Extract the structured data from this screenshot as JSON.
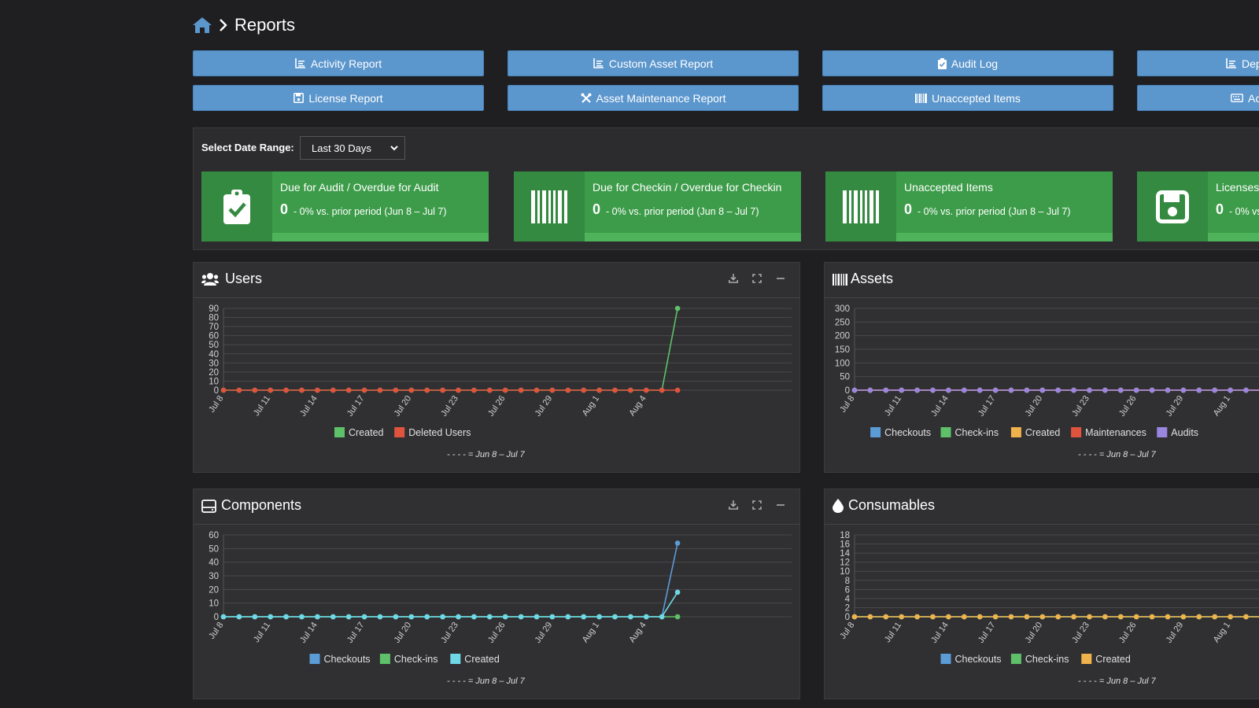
{
  "breadcrumb": {
    "title": "Reports"
  },
  "buttons": {
    "row1": [
      "Activity Report",
      "Custom Asset Report",
      "Audit Log",
      "Dep"
    ],
    "row2": [
      "License Report",
      "Asset Maintenance Report",
      "Unaccepted Items",
      "Ac"
    ]
  },
  "range": {
    "label": "Select Date Range:",
    "selected": "Last 30 Days"
  },
  "kpis": [
    {
      "label": "Due for Audit / Overdue for Audit",
      "value": "0",
      "delta": "- 0% vs. prior period (Jun 8 – Jul 7)",
      "icon": "clipboard-check-icon"
    },
    {
      "label": "Due for Checkin / Overdue for Checkin",
      "value": "0",
      "delta": "- 0% vs. prior period (Jun 8 – Jul 7)",
      "icon": "barcode-icon"
    },
    {
      "label": "Unaccepted Items",
      "value": "0",
      "delta": "- 0% vs. prior period (Jun 8 – Jul 7)",
      "icon": "barcode-icon"
    },
    {
      "label": "Licenses",
      "value": "0",
      "delta": "- 0% vs",
      "icon": "save-icon"
    }
  ],
  "colors": {
    "accent": "#5b96cd",
    "kpi": "#3d9c4a",
    "green": "#5ec16a",
    "red": "#e0533d",
    "blue": "#5b9bd6",
    "cyan": "#6fd8e6",
    "orange": "#f0b24a",
    "purple": "#9a86e0"
  },
  "chart_data": [
    {
      "type": "line",
      "title": "Users",
      "x": [
        "Jul 8",
        "Jul 9",
        "Jul 10",
        "Jul 11",
        "Jul 12",
        "Jul 13",
        "Jul 14",
        "Jul 15",
        "Jul 16",
        "Jul 17",
        "Jul 18",
        "Jul 19",
        "Jul 20",
        "Jul 21",
        "Jul 22",
        "Jul 23",
        "Jul 24",
        "Jul 25",
        "Jul 26",
        "Jul 27",
        "Jul 28",
        "Jul 29",
        "Jul 30",
        "Jul 31",
        "Aug 1",
        "Aug 2",
        "Aug 3",
        "Aug 4",
        "Aug 5",
        "Aug 6"
      ],
      "tick_labels": [
        "Jul 8",
        "Jul 11",
        "Jul 14",
        "Jul 17",
        "Jul 20",
        "Jul 23",
        "Jul 26",
        "Jul 29",
        "Aug 1",
        "Aug 4"
      ],
      "yticks": [
        0,
        10,
        20,
        30,
        40,
        50,
        60,
        70,
        80,
        90
      ],
      "ylim": [
        0,
        90
      ],
      "series": [
        {
          "name": "Created",
          "color": "#5ec16a",
          "values": [
            0,
            0,
            0,
            0,
            0,
            0,
            0,
            0,
            0,
            0,
            0,
            0,
            0,
            0,
            0,
            0,
            0,
            0,
            0,
            0,
            0,
            0,
            0,
            0,
            0,
            0,
            0,
            0,
            0,
            90
          ]
        },
        {
          "name": "Deleted Users",
          "color": "#e0533d",
          "values": [
            0,
            0,
            0,
            0,
            0,
            0,
            0,
            0,
            0,
            0,
            0,
            0,
            0,
            0,
            0,
            0,
            0,
            0,
            0,
            0,
            0,
            0,
            0,
            0,
            0,
            0,
            0,
            0,
            0,
            0
          ]
        }
      ],
      "period_label": "- - - - = Jun 8 – Jul 7"
    },
    {
      "type": "line",
      "title": "Assets",
      "x": [
        "Jul 8",
        "Jul 9",
        "Jul 10",
        "Jul 11",
        "Jul 12",
        "Jul 13",
        "Jul 14",
        "Jul 15",
        "Jul 16",
        "Jul 17",
        "Jul 18",
        "Jul 19",
        "Jul 20",
        "Jul 21",
        "Jul 22",
        "Jul 23",
        "Jul 24",
        "Jul 25",
        "Jul 26",
        "Jul 27",
        "Jul 28",
        "Jul 29",
        "Jul 30",
        "Jul 31",
        "Aug 1",
        "Aug 2",
        "Aug 3",
        "Aug 4",
        "Aug 5",
        "Aug 6"
      ],
      "tick_labels": [
        "Jul 8",
        "Jul 11",
        "Jul 14",
        "Jul 17",
        "Jul 20",
        "Jul 23",
        "Jul 26",
        "Jul 29",
        "Aug 1"
      ],
      "yticks": [
        0,
        50,
        100,
        150,
        200,
        250,
        300
      ],
      "ylim": [
        0,
        300
      ],
      "series": [
        {
          "name": "Checkouts",
          "color": "#5b9bd6",
          "values": [
            0,
            0,
            0,
            0,
            0,
            0,
            0,
            0,
            0,
            0,
            0,
            0,
            0,
            0,
            0,
            0,
            0,
            0,
            0,
            0,
            0,
            0,
            0,
            0,
            0,
            0,
            0,
            0,
            0,
            0
          ]
        },
        {
          "name": "Check-ins",
          "color": "#5ec16a",
          "values": [
            0,
            0,
            0,
            0,
            0,
            0,
            0,
            0,
            0,
            0,
            0,
            0,
            0,
            0,
            0,
            0,
            0,
            0,
            0,
            0,
            0,
            0,
            0,
            0,
            0,
            0,
            0,
            0,
            0,
            0
          ]
        },
        {
          "name": "Created",
          "color": "#f0b24a",
          "values": [
            0,
            0,
            0,
            0,
            0,
            0,
            0,
            0,
            0,
            0,
            0,
            0,
            0,
            0,
            0,
            0,
            0,
            0,
            0,
            0,
            0,
            0,
            0,
            0,
            0,
            0,
            0,
            0,
            0,
            0
          ]
        },
        {
          "name": "Maintenances",
          "color": "#e0533d",
          "values": [
            0,
            0,
            0,
            0,
            0,
            0,
            0,
            0,
            0,
            0,
            0,
            0,
            0,
            0,
            0,
            0,
            0,
            0,
            0,
            0,
            0,
            0,
            0,
            0,
            0,
            0,
            0,
            0,
            0,
            0
          ]
        },
        {
          "name": "Audits",
          "color": "#9a86e0",
          "values": [
            0,
            0,
            0,
            0,
            0,
            0,
            0,
            0,
            0,
            0,
            0,
            0,
            0,
            0,
            0,
            0,
            0,
            0,
            0,
            0,
            0,
            0,
            0,
            0,
            0,
            0,
            0,
            0,
            0,
            0
          ]
        }
      ],
      "period_label": "- - - - = Jun 8 – Jul 7"
    },
    {
      "type": "line",
      "title": "Components",
      "x": [
        "Jul 8",
        "Jul 9",
        "Jul 10",
        "Jul 11",
        "Jul 12",
        "Jul 13",
        "Jul 14",
        "Jul 15",
        "Jul 16",
        "Jul 17",
        "Jul 18",
        "Jul 19",
        "Jul 20",
        "Jul 21",
        "Jul 22",
        "Jul 23",
        "Jul 24",
        "Jul 25",
        "Jul 26",
        "Jul 27",
        "Jul 28",
        "Jul 29",
        "Jul 30",
        "Jul 31",
        "Aug 1",
        "Aug 2",
        "Aug 3",
        "Aug 4",
        "Aug 5",
        "Aug 6"
      ],
      "tick_labels": [
        "Jul 8",
        "Jul 11",
        "Jul 14",
        "Jul 17",
        "Jul 20",
        "Jul 23",
        "Jul 26",
        "Jul 29",
        "Aug 1",
        "Aug 4"
      ],
      "yticks": [
        0,
        10,
        20,
        30,
        40,
        50,
        60
      ],
      "ylim": [
        0,
        60
      ],
      "series": [
        {
          "name": "Checkouts",
          "color": "#5b9bd6",
          "values": [
            0,
            0,
            0,
            0,
            0,
            0,
            0,
            0,
            0,
            0,
            0,
            0,
            0,
            0,
            0,
            0,
            0,
            0,
            0,
            0,
            0,
            0,
            0,
            0,
            0,
            0,
            0,
            0,
            0,
            54
          ]
        },
        {
          "name": "Check-ins",
          "color": "#5ec16a",
          "values": [
            0,
            0,
            0,
            0,
            0,
            0,
            0,
            0,
            0,
            0,
            0,
            0,
            0,
            0,
            0,
            0,
            0,
            0,
            0,
            0,
            0,
            0,
            0,
            0,
            0,
            0,
            0,
            0,
            0,
            0
          ]
        },
        {
          "name": "Created",
          "color": "#6fd8e6",
          "values": [
            0,
            0,
            0,
            0,
            0,
            0,
            0,
            0,
            0,
            0,
            0,
            0,
            0,
            0,
            0,
            0,
            0,
            0,
            0,
            0,
            0,
            0,
            0,
            0,
            0,
            0,
            0,
            0,
            0,
            18
          ]
        }
      ],
      "period_label": "- - - - = Jun 8 – Jul 7"
    },
    {
      "type": "line",
      "title": "Consumables",
      "x": [
        "Jul 8",
        "Jul 9",
        "Jul 10",
        "Jul 11",
        "Jul 12",
        "Jul 13",
        "Jul 14",
        "Jul 15",
        "Jul 16",
        "Jul 17",
        "Jul 18",
        "Jul 19",
        "Jul 20",
        "Jul 21",
        "Jul 22",
        "Jul 23",
        "Jul 24",
        "Jul 25",
        "Jul 26",
        "Jul 27",
        "Jul 28",
        "Jul 29",
        "Jul 30",
        "Jul 31",
        "Aug 1",
        "Aug 2",
        "Aug 3",
        "Aug 4",
        "Aug 5",
        "Aug 6"
      ],
      "tick_labels": [
        "Jul 8",
        "Jul 11",
        "Jul 14",
        "Jul 17",
        "Jul 20",
        "Jul 23",
        "Jul 26",
        "Jul 29",
        "Aug 1"
      ],
      "yticks": [
        0,
        2,
        4,
        6,
        8,
        10,
        12,
        14,
        16,
        18
      ],
      "ylim": [
        0,
        18
      ],
      "series": [
        {
          "name": "Checkouts",
          "color": "#5b9bd6",
          "values": [
            0,
            0,
            0,
            0,
            0,
            0,
            0,
            0,
            0,
            0,
            0,
            0,
            0,
            0,
            0,
            0,
            0,
            0,
            0,
            0,
            0,
            0,
            0,
            0,
            0,
            0,
            0,
            0,
            0,
            0
          ]
        },
        {
          "name": "Check-ins",
          "color": "#5ec16a",
          "values": [
            0,
            0,
            0,
            0,
            0,
            0,
            0,
            0,
            0,
            0,
            0,
            0,
            0,
            0,
            0,
            0,
            0,
            0,
            0,
            0,
            0,
            0,
            0,
            0,
            0,
            0,
            0,
            0,
            0,
            0
          ]
        },
        {
          "name": "Created",
          "color": "#f0b24a",
          "values": [
            0,
            0,
            0,
            0,
            0,
            0,
            0,
            0,
            0,
            0,
            0,
            0,
            0,
            0,
            0,
            0,
            0,
            0,
            0,
            0,
            0,
            0,
            0,
            0,
            0,
            0,
            0,
            0,
            0,
            0
          ]
        }
      ],
      "period_label": "- - - - = Jun 8 – Jul 7"
    }
  ]
}
